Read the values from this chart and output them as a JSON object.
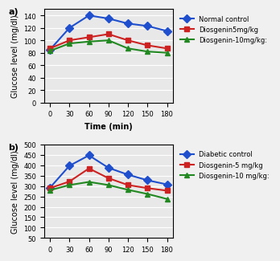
{
  "time": [
    0,
    30,
    60,
    90,
    120,
    150,
    180
  ],
  "panel_a": {
    "label": "a)",
    "normal_control": [
      85,
      120,
      140,
      135,
      127,
      123,
      115
    ],
    "diosgenin_5": [
      87,
      100,
      105,
      110,
      100,
      92,
      87
    ],
    "diosgenin_10": [
      83,
      95,
      98,
      100,
      87,
      82,
      80
    ],
    "ylabel": "Glucose level (mg/dl)",
    "xlabel": "Time (min)",
    "ylim": [
      0,
      150
    ],
    "yticks": [
      0,
      20,
      40,
      60,
      80,
      100,
      120,
      140
    ],
    "legend_labels": [
      "Normal control",
      "Diosgenin5mg/kg",
      "Diosgenin-10mg/kg:"
    ],
    "bg_color": "#e8e8e8"
  },
  "panel_b": {
    "label": "b)",
    "diabetic_control": [
      292,
      398,
      448,
      388,
      355,
      328,
      308
    ],
    "diosgenin_5": [
      290,
      322,
      385,
      338,
      305,
      290,
      278
    ],
    "diosgenin_10": [
      280,
      305,
      320,
      305,
      282,
      262,
      238
    ],
    "ylabel": "Glucose level (mg/dl)",
    "xlabel": "",
    "ylim": [
      50,
      500
    ],
    "yticks": [
      50,
      100,
      150,
      200,
      250,
      300,
      350,
      400,
      450,
      500
    ],
    "legend_labels": [
      "Diabetic control",
      "Diosgenin-5 mg/kg",
      "Diosgenin-10 mg/kg:"
    ],
    "bg_color": "#e8e8e8"
  },
  "blue_color": "#1f4fcc",
  "red_color": "#cc2222",
  "green_color": "#228822",
  "line_width": 1.5,
  "marker_size": 5,
  "font_size_label": 7,
  "font_size_tick": 6,
  "font_size_legend": 6
}
